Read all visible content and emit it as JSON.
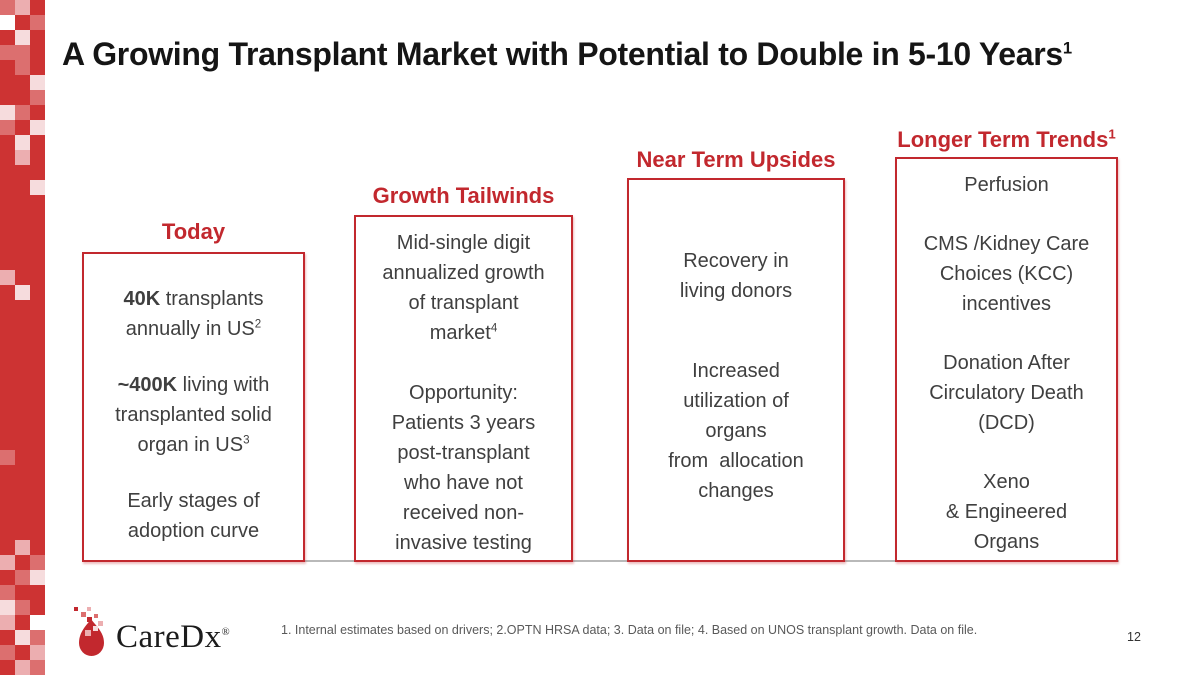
{
  "slide": {
    "title": "A Growing Transplant Market with Potential to Double in 5-10 Years^1^",
    "page_number": "12",
    "footnote": "1. Internal estimates based on drivers; 2.OPTN HRSA data; 3. Data on file; 4. Based on UNOS transplant growth. Data on file.",
    "logo": {
      "text": "CareDx",
      "reg_mark": "®"
    }
  },
  "columns": [
    {
      "header": "Today",
      "paragraphs": [
        "**40K** transplants\nannually in US^2^",
        "**~400K** living with\ntransplanted solid\norgan in US^3^",
        "Early stages of\nadoption curve"
      ]
    },
    {
      "header": "Growth Tailwinds",
      "paragraphs": [
        "Mid-single digit\nannualized growth\nof transplant\nmarket^4^",
        "Opportunity:\nPatients 3 years\npost-transplant\nwho have not\nreceived non-\ninvasive testing"
      ]
    },
    {
      "header": "Near Term Upsides",
      "paragraphs": [
        "Recovery in\nliving donors",
        "Increased\nutilization of\norgans\nfrom  allocation\nchanges"
      ]
    },
    {
      "header": "Longer Term Trends^1^",
      "paragraphs": [
        "Perfusion",
        "CMS /Kidney Care\nChoices (KCC)\nincentives",
        "Donation After\nCirculatory Death\n(DCD)",
        "Xeno\n& Engineered\nOrgans"
      ]
    }
  ],
  "colors": {
    "brand_red": "#c2282e",
    "bar_red": "#cd3333",
    "body_text": "#3f3f3f",
    "title_text": "#151515",
    "footnote_text": "#595959",
    "divider": "#b9b9b9"
  },
  "mosaic": {
    "cell": 15,
    "cols": 3,
    "rows": 45,
    "base": "D",
    "palette": {
      "D": "#cd3333",
      "M": "#dc6f6f",
      "L": "#ecaeb0",
      "P": "#f6dcdd",
      "W": "#ffffff"
    },
    "pattern_top": [
      "MLD",
      "WDM",
      "DPD",
      "MMD",
      "DMD",
      "DDP",
      "DDM",
      "PMD",
      "MDP",
      "DPD",
      "DLD"
    ],
    "pattern_bottom": [
      "DLD",
      "LDM",
      "DMP",
      "MDD",
      "PMD",
      "LDW",
      "DPM",
      "MDL",
      "DLM"
    ],
    "overrides": [
      {
        "r": 12,
        "c": 2,
        "s": "P"
      },
      {
        "r": 18,
        "c": 0,
        "s": "L"
      },
      {
        "r": 19,
        "c": 1,
        "s": "P"
      },
      {
        "r": 30,
        "c": 0,
        "s": "M"
      }
    ]
  }
}
